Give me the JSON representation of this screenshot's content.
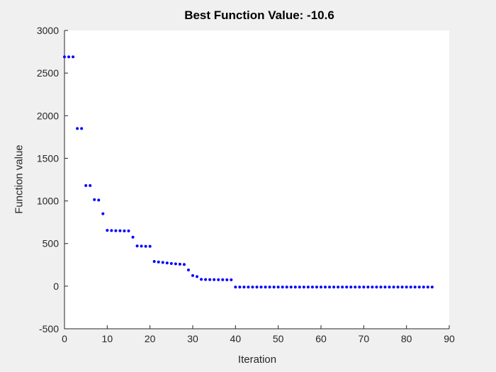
{
  "figure": {
    "background_color": "#f0f0f0",
    "plot_background_color": "#ffffff",
    "axis_color": "#262626",
    "label_color": "#262626",
    "title_color": "#000000"
  },
  "chart_data": {
    "type": "scatter",
    "title": "Best Function Value: -10.6",
    "xlabel": "Iteration",
    "ylabel": "Function value",
    "best_function_value": -10.6,
    "marker": {
      "shape": "dot",
      "color": "#0000ff",
      "radius_px": 2
    },
    "xlim": [
      0,
      90
    ],
    "ylim": [
      -500,
      3000
    ],
    "x_ticks": [
      0,
      10,
      20,
      30,
      40,
      50,
      60,
      70,
      80,
      90
    ],
    "y_ticks": [
      -500,
      0,
      500,
      1000,
      1500,
      2000,
      2500,
      3000
    ],
    "grid": false,
    "legend": null,
    "points": [
      [
        0,
        2690
      ],
      [
        1,
        2690
      ],
      [
        2,
        2690
      ],
      [
        3,
        1850
      ],
      [
        4,
        1850
      ],
      [
        5,
        1180
      ],
      [
        6,
        1180
      ],
      [
        7,
        1015
      ],
      [
        8,
        1010
      ],
      [
        9,
        850
      ],
      [
        10,
        655
      ],
      [
        11,
        652
      ],
      [
        12,
        650
      ],
      [
        13,
        650
      ],
      [
        14,
        648
      ],
      [
        15,
        648
      ],
      [
        16,
        575
      ],
      [
        17,
        472
      ],
      [
        18,
        470
      ],
      [
        19,
        468
      ],
      [
        20,
        468
      ],
      [
        21,
        290
      ],
      [
        22,
        284
      ],
      [
        23,
        278
      ],
      [
        24,
        272
      ],
      [
        25,
        266
      ],
      [
        26,
        262
      ],
      [
        27,
        258
      ],
      [
        28,
        254
      ],
      [
        29,
        190
      ],
      [
        30,
        125
      ],
      [
        31,
        112
      ],
      [
        32,
        80
      ],
      [
        33,
        78
      ],
      [
        34,
        77
      ],
      [
        35,
        77
      ],
      [
        36,
        76
      ],
      [
        37,
        76
      ],
      [
        38,
        75
      ],
      [
        39,
        75
      ],
      [
        40,
        -10.6
      ],
      [
        41,
        -10.6
      ],
      [
        42,
        -10.6
      ],
      [
        43,
        -10.6
      ],
      [
        44,
        -10.6
      ],
      [
        45,
        -10.6
      ],
      [
        46,
        -10.6
      ],
      [
        47,
        -10.6
      ],
      [
        48,
        -10.6
      ],
      [
        49,
        -10.6
      ],
      [
        50,
        -10.6
      ],
      [
        51,
        -10.6
      ],
      [
        52,
        -10.6
      ],
      [
        53,
        -10.6
      ],
      [
        54,
        -10.6
      ],
      [
        55,
        -10.6
      ],
      [
        56,
        -10.6
      ],
      [
        57,
        -10.6
      ],
      [
        58,
        -10.6
      ],
      [
        59,
        -10.6
      ],
      [
        60,
        -10.6
      ],
      [
        61,
        -10.6
      ],
      [
        62,
        -10.6
      ],
      [
        63,
        -10.6
      ],
      [
        64,
        -10.6
      ],
      [
        65,
        -10.6
      ],
      [
        66,
        -10.6
      ],
      [
        67,
        -10.6
      ],
      [
        68,
        -10.6
      ],
      [
        69,
        -10.6
      ],
      [
        70,
        -10.6
      ],
      [
        71,
        -10.6
      ],
      [
        72,
        -10.6
      ],
      [
        73,
        -10.6
      ],
      [
        74,
        -10.6
      ],
      [
        75,
        -10.6
      ],
      [
        76,
        -10.6
      ],
      [
        77,
        -10.6
      ],
      [
        78,
        -10.6
      ],
      [
        79,
        -10.6
      ],
      [
        80,
        -10.6
      ],
      [
        81,
        -10.6
      ],
      [
        82,
        -10.6
      ],
      [
        83,
        -10.6
      ],
      [
        84,
        -10.6
      ],
      [
        85,
        -10.6
      ],
      [
        86,
        -10.6
      ]
    ]
  }
}
